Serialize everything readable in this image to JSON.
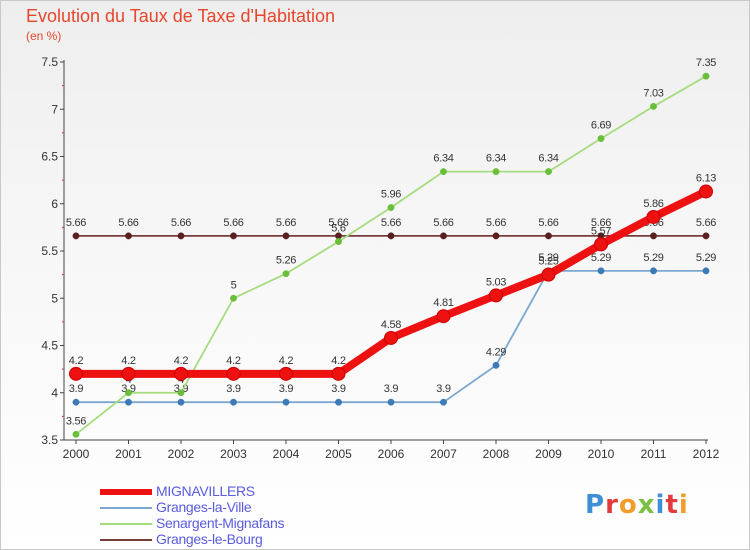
{
  "header": {
    "title": "Evolution du Taux de Taxe d'Habitation",
    "unit": "(en %)"
  },
  "logo": {
    "text": "Proxiti"
  },
  "chart_data": {
    "type": "line",
    "title": "Evolution du Taux de Taxe d'Habitation",
    "ylabel": "(en %)",
    "x": [
      "2000",
      "2001",
      "2002",
      "2003",
      "2004",
      "2005",
      "2006",
      "2007",
      "2008",
      "2009",
      "2010",
      "2011",
      "2012"
    ],
    "ylim": [
      3.5,
      7.5
    ],
    "yticks": [
      3.5,
      4,
      4.5,
      5,
      5.5,
      6,
      6.5,
      7,
      7.5
    ],
    "ytick_labels": [
      "3.5",
      "4",
      "4.5",
      "5",
      "5.5",
      "6",
      "6.5",
      "7",
      "7.5"
    ],
    "grid": false,
    "legend": "bottom-left",
    "series": [
      {
        "name": "Granges-le-Bourg",
        "color": "#7a3b3b",
        "values": [
          5.66,
          5.66,
          5.66,
          5.66,
          5.66,
          5.66,
          5.66,
          5.66,
          5.66,
          5.66,
          5.66,
          5.66,
          5.66
        ],
        "labels": [
          "5.66",
          "5.66",
          "5.66",
          "5.66",
          "5.66",
          "5.66",
          "5.66",
          "5.66",
          "5.66",
          "5.66",
          "5.66",
          "5.66",
          "5.66"
        ]
      },
      {
        "name": "Granges-la-Ville",
        "color": "#7aa8d0",
        "values": [
          3.9,
          3.9,
          3.9,
          3.9,
          3.9,
          3.9,
          3.9,
          3.9,
          4.29,
          5.29,
          5.29,
          5.29,
          5.29
        ],
        "labels": [
          "3.9",
          "3.9",
          "3.9",
          "3.9",
          "3.9",
          "3.9",
          "3.9",
          "3.9",
          "4.29",
          "5.29",
          "5.29",
          "5.29",
          "5.29"
        ]
      },
      {
        "name": "Senargent-Mignafans",
        "color": "#a6dc7e",
        "values": [
          3.56,
          4,
          4,
          5,
          5.26,
          5.6,
          5.96,
          6.34,
          6.34,
          6.34,
          6.69,
          7.03,
          7.35
        ],
        "labels": [
          "3.56",
          "4",
          "4",
          "5",
          "5.26",
          "5.6",
          "5.96",
          "6.34",
          "6.34",
          "6.34",
          "6.69",
          "7.03",
          "7.35"
        ]
      },
      {
        "name": "MIGNAVILLERS",
        "color": "#ee1111",
        "values": [
          4.2,
          4.2,
          4.2,
          4.2,
          4.2,
          4.2,
          4.58,
          4.81,
          5.03,
          5.25,
          5.57,
          5.86,
          6.13
        ],
        "labels": [
          "4.2",
          "4.2",
          "4.2",
          "4.2",
          "4.2",
          "4.2",
          "4.58",
          "4.81",
          "5.03",
          "5.25",
          "5.57",
          "5.86",
          "6.13"
        ]
      }
    ]
  },
  "legend": {
    "items": [
      {
        "label": "MIGNAVILLERS",
        "color": "#ee1111"
      },
      {
        "label": "Granges-la-Ville",
        "color": "#7aa8d0"
      },
      {
        "label": "Senargent-Mignafans",
        "color": "#a6dc7e"
      },
      {
        "label": "Granges-le-Bourg",
        "color": "#7a3b3b"
      }
    ]
  }
}
